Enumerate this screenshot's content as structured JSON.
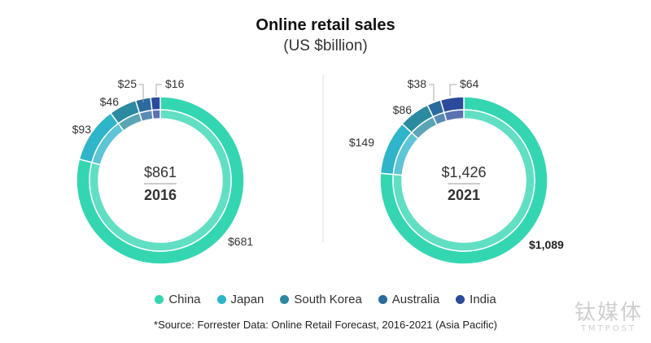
{
  "title": "Online retail sales",
  "subtitle": "(US $billion)",
  "colors": {
    "China": "#34d6b2",
    "Japan": "#2fb5c9",
    "South Korea": "#2b8aa0",
    "Australia": "#2a6a9e",
    "India": "#2c4a9c"
  },
  "legend": [
    "China",
    "Japan",
    "South Korea",
    "Australia",
    "India"
  ],
  "source": "*Source: Forrester Data: Online Retail Forecast, 2016-2021 (Asia Pacific)",
  "watermark": {
    "cn": "钛媒体",
    "en": "TMTPOST"
  },
  "chart_data": [
    {
      "type": "pie",
      "subtype": "donut",
      "year_label": "2016",
      "total_label": "$861",
      "categories": [
        "China",
        "Japan",
        "South Korea",
        "Australia",
        "India"
      ],
      "values": [
        681,
        93,
        46,
        25,
        16
      ],
      "value_labels": [
        "$681",
        "$93",
        "$46",
        "$25",
        "$16"
      ]
    },
    {
      "type": "pie",
      "subtype": "donut",
      "year_label": "2021",
      "total_label": "$1,426",
      "categories": [
        "China",
        "Japan",
        "South Korea",
        "Australia",
        "India"
      ],
      "values": [
        1089,
        149,
        86,
        38,
        64
      ],
      "value_labels": [
        "$1,089",
        "$149",
        "$86",
        "$38",
        "$64"
      ]
    }
  ]
}
